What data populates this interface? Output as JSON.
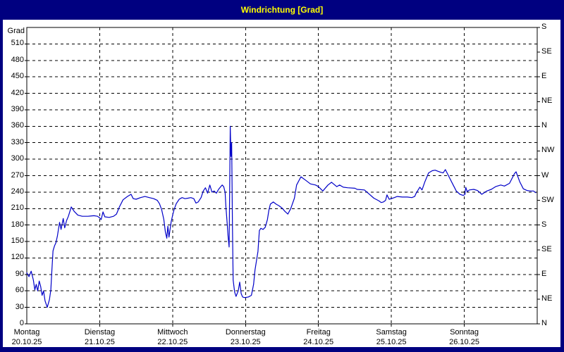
{
  "window": {
    "title": "Windrichtung [Grad]"
  },
  "colors": {
    "frame": "#000080",
    "title_text": "#ffff00",
    "panel": "#ffffff",
    "axis": "#000000",
    "grid": "#000000",
    "line": "#0000c8"
  },
  "chart_data": {
    "type": "line",
    "title": "Windrichtung [Grad]",
    "grid": "dashed",
    "y_axis_left": {
      "label": "Grad",
      "min": 0,
      "max": 540,
      "tick_step": 30,
      "ticks": [
        0,
        30,
        60,
        90,
        120,
        150,
        180,
        210,
        240,
        270,
        300,
        330,
        360,
        390,
        420,
        450,
        480,
        510
      ]
    },
    "y_axis_right": {
      "unit": "compass",
      "ticks": [
        {
          "value": 540,
          "label": "S"
        },
        {
          "value": 495,
          "label": "SE"
        },
        {
          "value": 450,
          "label": "E"
        },
        {
          "value": 405,
          "label": "NE"
        },
        {
          "value": 360,
          "label": "N"
        },
        {
          "value": 315,
          "label": "NW"
        },
        {
          "value": 270,
          "label": "W"
        },
        {
          "value": 225,
          "label": "SW"
        },
        {
          "value": 180,
          "label": "S"
        },
        {
          "value": 135,
          "label": "SE"
        },
        {
          "value": 90,
          "label": "E"
        },
        {
          "value": 45,
          "label": "NE"
        },
        {
          "value": 0,
          "label": "N"
        }
      ]
    },
    "x_axis": {
      "span_days": 7,
      "days": [
        {
          "name": "Montag",
          "date": "20.10.25"
        },
        {
          "name": "Dienstag",
          "date": "21.10.25"
        },
        {
          "name": "Mittwoch",
          "date": "22.10.25"
        },
        {
          "name": "Donnerstag",
          "date": "23.10.25"
        },
        {
          "name": "Freitag",
          "date": "24.10.25"
        },
        {
          "name": "Samstag",
          "date": "25.10.25"
        },
        {
          "name": "Sonntag",
          "date": "26.10.25"
        }
      ]
    },
    "series": [
      {
        "name": "Windrichtung",
        "color": "#0000c8",
        "points": [
          [
            0.0,
            93
          ],
          [
            0.03,
            86
          ],
          [
            0.06,
            96
          ],
          [
            0.09,
            80
          ],
          [
            0.11,
            62
          ],
          [
            0.13,
            72
          ],
          [
            0.15,
            60
          ],
          [
            0.17,
            78
          ],
          [
            0.19,
            68
          ],
          [
            0.21,
            52
          ],
          [
            0.23,
            60
          ],
          [
            0.25,
            42
          ],
          [
            0.28,
            30
          ],
          [
            0.31,
            44
          ],
          [
            0.33,
            62
          ],
          [
            0.345,
            100
          ],
          [
            0.36,
            133
          ],
          [
            0.38,
            142
          ],
          [
            0.4,
            148
          ],
          [
            0.42,
            160
          ],
          [
            0.45,
            185
          ],
          [
            0.47,
            172
          ],
          [
            0.5,
            192
          ],
          [
            0.52,
            175
          ],
          [
            0.545,
            188
          ],
          [
            0.57,
            196
          ],
          [
            0.61,
            213
          ],
          [
            0.65,
            205
          ],
          [
            0.7,
            198
          ],
          [
            0.76,
            196
          ],
          [
            0.84,
            196
          ],
          [
            0.92,
            197
          ],
          [
            0.97,
            196
          ],
          [
            1.0,
            193
          ],
          [
            1.02,
            190
          ],
          [
            1.045,
            204
          ],
          [
            1.07,
            195
          ],
          [
            1.13,
            194
          ],
          [
            1.19,
            196
          ],
          [
            1.23,
            200
          ],
          [
            1.27,
            213
          ],
          [
            1.32,
            226
          ],
          [
            1.38,
            232
          ],
          [
            1.43,
            236
          ],
          [
            1.46,
            228
          ],
          [
            1.5,
            227
          ],
          [
            1.56,
            230
          ],
          [
            1.62,
            232
          ],
          [
            1.68,
            230
          ],
          [
            1.74,
            228
          ],
          [
            1.79,
            225
          ],
          [
            1.82,
            219
          ],
          [
            1.85,
            208
          ],
          [
            1.88,
            190
          ],
          [
            1.9,
            168
          ],
          [
            1.92,
            156
          ],
          [
            1.935,
            178
          ],
          [
            1.95,
            158
          ],
          [
            1.965,
            172
          ],
          [
            1.98,
            186
          ],
          [
            2.0,
            198
          ],
          [
            2.02,
            208
          ],
          [
            2.05,
            219
          ],
          [
            2.09,
            227
          ],
          [
            2.13,
            230
          ],
          [
            2.17,
            228
          ],
          [
            2.21,
            229
          ],
          [
            2.25,
            230
          ],
          [
            2.29,
            228
          ],
          [
            2.32,
            220
          ],
          [
            2.35,
            222
          ],
          [
            2.39,
            230
          ],
          [
            2.42,
            242
          ],
          [
            2.45,
            248
          ],
          [
            2.48,
            238
          ],
          [
            2.51,
            253
          ],
          [
            2.54,
            240
          ],
          [
            2.57,
            242
          ],
          [
            2.6,
            238
          ],
          [
            2.63,
            245
          ],
          [
            2.66,
            250
          ],
          [
            2.68,
            253
          ],
          [
            2.7,
            250
          ],
          [
            2.72,
            240
          ],
          [
            2.73,
            214
          ],
          [
            2.75,
            180
          ],
          [
            2.76,
            160
          ],
          [
            2.775,
            140
          ],
          [
            2.79,
            360
          ],
          [
            2.8,
            305
          ],
          [
            2.81,
            330
          ],
          [
            2.82,
            180
          ],
          [
            2.83,
            80
          ],
          [
            2.85,
            58
          ],
          [
            2.87,
            50
          ],
          [
            2.9,
            60
          ],
          [
            2.92,
            76
          ],
          [
            2.94,
            55
          ],
          [
            2.96,
            49
          ],
          [
            2.98,
            48
          ],
          [
            3.0,
            48
          ],
          [
            3.04,
            49
          ],
          [
            3.08,
            52
          ],
          [
            3.11,
            72
          ],
          [
            3.13,
            98
          ],
          [
            3.15,
            115
          ],
          [
            3.17,
            132
          ],
          [
            3.19,
            170
          ],
          [
            3.21,
            174
          ],
          [
            3.24,
            172
          ],
          [
            3.27,
            176
          ],
          [
            3.3,
            190
          ],
          [
            3.32,
            207
          ],
          [
            3.34,
            218
          ],
          [
            3.38,
            222
          ],
          [
            3.42,
            218
          ],
          [
            3.46,
            215
          ],
          [
            3.5,
            211
          ],
          [
            3.54,
            205
          ],
          [
            3.58,
            200
          ],
          [
            3.62,
            210
          ],
          [
            3.67,
            229
          ],
          [
            3.7,
            253
          ],
          [
            3.76,
            268
          ],
          [
            3.82,
            262
          ],
          [
            3.89,
            255
          ],
          [
            3.96,
            253
          ],
          [
            4.0,
            250
          ],
          [
            4.03,
            246
          ],
          [
            4.06,
            242
          ],
          [
            4.13,
            253
          ],
          [
            4.18,
            258
          ],
          [
            4.25,
            250
          ],
          [
            4.29,
            253
          ],
          [
            4.34,
            249
          ],
          [
            4.4,
            248
          ],
          [
            4.5,
            247
          ],
          [
            4.53,
            245
          ],
          [
            4.63,
            244
          ],
          [
            4.69,
            237
          ],
          [
            4.76,
            229
          ],
          [
            4.83,
            224
          ],
          [
            4.86,
            221
          ],
          [
            4.89,
            222
          ],
          [
            4.92,
            225
          ],
          [
            4.94,
            235
          ],
          [
            4.97,
            227
          ],
          [
            5.0,
            228
          ],
          [
            5.04,
            230
          ],
          [
            5.08,
            232
          ],
          [
            5.15,
            231
          ],
          [
            5.22,
            231
          ],
          [
            5.28,
            230
          ],
          [
            5.32,
            232
          ],
          [
            5.34,
            238
          ],
          [
            5.39,
            249
          ],
          [
            5.42,
            244
          ],
          [
            5.46,
            259
          ],
          [
            5.51,
            275
          ],
          [
            5.56,
            279
          ],
          [
            5.6,
            280
          ],
          [
            5.64,
            278
          ],
          [
            5.68,
            276
          ],
          [
            5.71,
            275
          ],
          [
            5.74,
            281
          ],
          [
            5.79,
            268
          ],
          [
            5.84,
            255
          ],
          [
            5.89,
            242
          ],
          [
            5.94,
            236
          ],
          [
            5.985,
            234
          ],
          [
            6.01,
            236
          ],
          [
            6.02,
            249
          ],
          [
            6.04,
            241
          ],
          [
            6.07,
            244
          ],
          [
            6.13,
            245
          ],
          [
            6.18,
            243
          ],
          [
            6.24,
            236
          ],
          [
            6.31,
            242
          ],
          [
            6.37,
            245
          ],
          [
            6.43,
            250
          ],
          [
            6.5,
            253
          ],
          [
            6.55,
            251
          ],
          [
            6.62,
            256
          ],
          [
            6.69,
            274
          ],
          [
            6.71,
            277
          ],
          [
            6.76,
            259
          ],
          [
            6.81,
            246
          ],
          [
            6.86,
            243
          ],
          [
            6.91,
            242
          ],
          [
            6.95,
            242
          ],
          [
            6.98,
            239
          ]
        ]
      }
    ]
  }
}
